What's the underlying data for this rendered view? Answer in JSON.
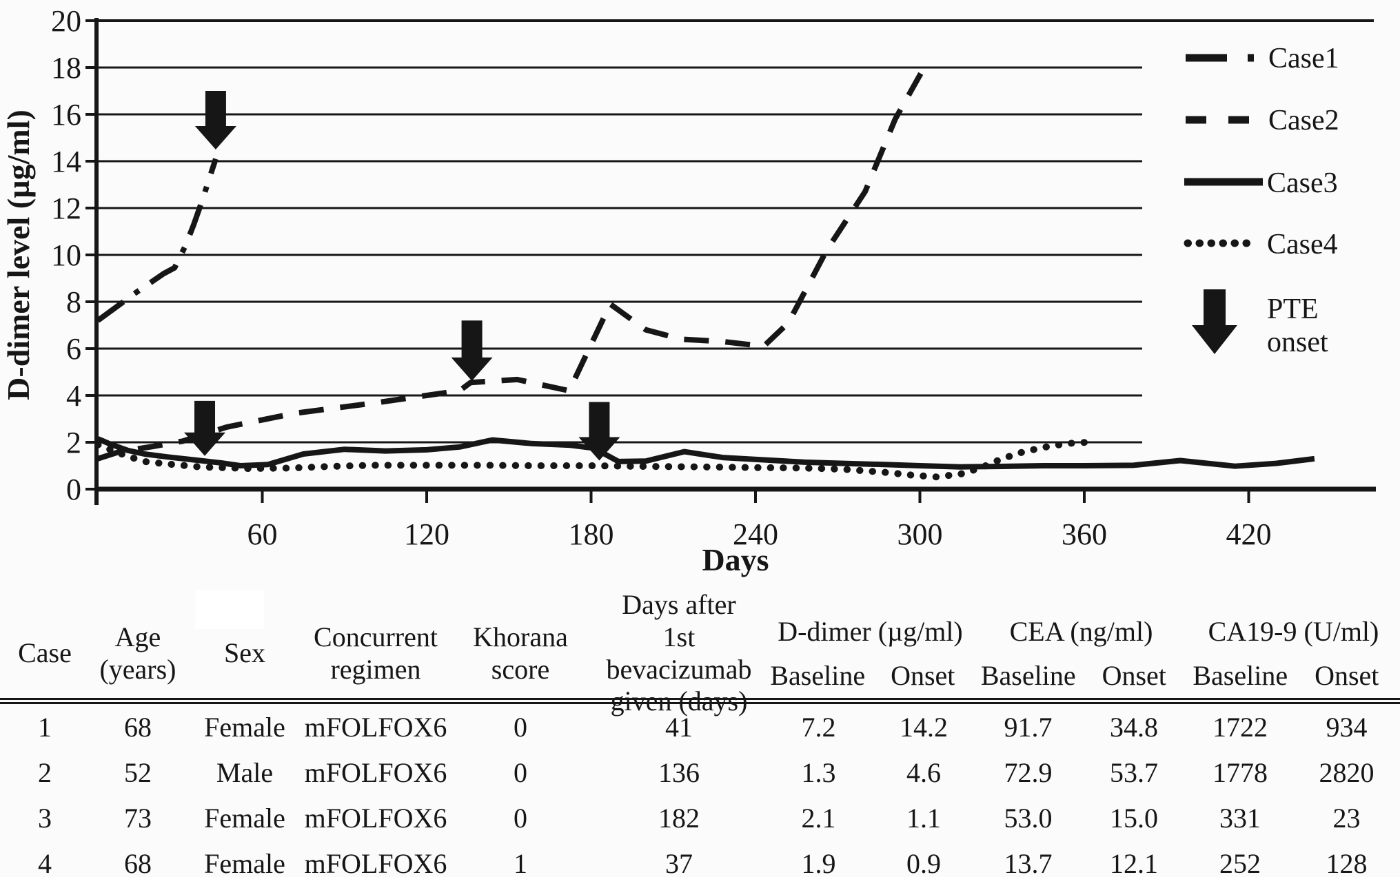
{
  "colors": {
    "ink": "#161616",
    "background": "#fbfbfb",
    "artifact": "#ffffff"
  },
  "chart_data": {
    "type": "line",
    "title": "",
    "xlabel": "Days",
    "ylabel": "D-dimer level (µg/ml)",
    "xlim": [
      0,
      466
    ],
    "ylim": [
      0,
      20
    ],
    "x_ticks": [
      60,
      120,
      180,
      240,
      300,
      360,
      420
    ],
    "y_ticks": [
      0,
      2,
      4,
      6,
      8,
      10,
      12,
      14,
      16,
      18,
      20
    ],
    "grid": "horizontal",
    "legend_position": "right",
    "series": [
      {
        "name": "Case1",
        "line_style": "dash-dot",
        "dash": "46 20 8 20",
        "width": 8,
        "linecap": "butt",
        "points": [
          [
            0,
            7.2
          ],
          [
            14,
            8.4
          ],
          [
            19,
            8.8
          ],
          [
            24,
            9.2
          ],
          [
            28,
            9.45
          ],
          [
            32,
            10.4
          ],
          [
            35,
            11.3
          ],
          [
            38,
            12.3
          ],
          [
            43,
            14.1
          ]
        ]
      },
      {
        "name": "Case2",
        "line_style": "dashed",
        "dash": "36 24",
        "width": 8,
        "linecap": "butt",
        "points": [
          [
            0,
            1.3
          ],
          [
            8,
            1.6
          ],
          [
            20,
            1.82
          ],
          [
            31,
            2.05
          ],
          [
            47,
            2.65
          ],
          [
            72,
            3.24
          ],
          [
            101,
            3.68
          ],
          [
            120,
            4.0
          ],
          [
            132,
            4.2
          ],
          [
            136,
            4.55
          ],
          [
            153,
            4.68
          ],
          [
            172,
            4.2
          ],
          [
            187,
            7.9
          ],
          [
            200,
            6.8
          ],
          [
            213,
            6.4
          ],
          [
            228,
            6.3
          ],
          [
            243,
            6.1
          ],
          [
            252,
            7.1
          ],
          [
            266,
            10.2
          ],
          [
            280,
            12.7
          ],
          [
            291,
            15.8
          ],
          [
            303,
            18.3
          ]
        ]
      },
      {
        "name": "Case3",
        "line_style": "solid",
        "dash": null,
        "width": 8,
        "linecap": "butt",
        "points": [
          [
            0,
            2.15
          ],
          [
            5,
            1.9
          ],
          [
            11,
            1.65
          ],
          [
            17,
            1.5
          ],
          [
            25,
            1.38
          ],
          [
            35,
            1.25
          ],
          [
            45,
            1.12
          ],
          [
            52,
            1.0
          ],
          [
            62,
            1.05
          ],
          [
            75,
            1.5
          ],
          [
            90,
            1.7
          ],
          [
            105,
            1.63
          ],
          [
            120,
            1.68
          ],
          [
            132,
            1.8
          ],
          [
            144,
            2.1
          ],
          [
            158,
            1.95
          ],
          [
            172,
            1.88
          ],
          [
            181,
            1.75
          ],
          [
            190,
            1.18
          ],
          [
            200,
            1.2
          ],
          [
            214,
            1.6
          ],
          [
            228,
            1.35
          ],
          [
            243,
            1.25
          ],
          [
            258,
            1.15
          ],
          [
            272,
            1.1
          ],
          [
            287,
            1.05
          ],
          [
            300,
            1.0
          ],
          [
            315,
            0.95
          ],
          [
            330,
            0.97
          ],
          [
            345,
            1.0
          ],
          [
            360,
            1.0
          ],
          [
            378,
            1.02
          ],
          [
            395,
            1.22
          ],
          [
            415,
            0.98
          ],
          [
            430,
            1.1
          ],
          [
            444,
            1.3
          ]
        ]
      },
      {
        "name": "Case4",
        "line_style": "dotted",
        "dash": "0.5 18",
        "width": 10,
        "linecap": "round",
        "points": [
          [
            0,
            1.9
          ],
          [
            6,
            1.62
          ],
          [
            11,
            1.4
          ],
          [
            17,
            1.18
          ],
          [
            24,
            1.09
          ],
          [
            37,
            0.95
          ],
          [
            55,
            0.88
          ],
          [
            70,
            0.9
          ],
          [
            85,
            0.97
          ],
          [
            100,
            1.02
          ],
          [
            120,
            1.02
          ],
          [
            140,
            1.02
          ],
          [
            160,
            1.0
          ],
          [
            180,
            1.0
          ],
          [
            200,
            0.97
          ],
          [
            220,
            0.95
          ],
          [
            240,
            0.92
          ],
          [
            258,
            0.9
          ],
          [
            272,
            0.85
          ],
          [
            287,
            0.72
          ],
          [
            297,
            0.6
          ],
          [
            306,
            0.52
          ],
          [
            315,
            0.65
          ],
          [
            322,
            0.9
          ],
          [
            330,
            1.3
          ],
          [
            338,
            1.6
          ],
          [
            348,
            1.85
          ],
          [
            356,
            1.97
          ],
          [
            361,
            2.0
          ]
        ]
      }
    ],
    "annotations": {
      "label": "PTE onset",
      "arrows": [
        {
          "series": "Case1",
          "day": 43,
          "tip_value": 14.5,
          "top_value": 17.0
        },
        {
          "series": "Case4",
          "day": 39,
          "tip_value": 1.42,
          "top_value": 3.77
        },
        {
          "series": "Case2",
          "day": 136.5,
          "tip_value": 4.62,
          "top_value": 7.2
        },
        {
          "series": "Case3",
          "day": 183,
          "tip_value": 1.22,
          "top_value": 3.72
        }
      ]
    }
  },
  "legend": {
    "items": [
      {
        "label": "Case1",
        "dash": "60 30 9 200"
      },
      {
        "label": "Case2",
        "dash": "30 32"
      },
      {
        "label": "Case3",
        "dash": "none"
      },
      {
        "label": "Case4",
        "dash": "0.5 16.5"
      }
    ],
    "arrow_label": [
      "PTE",
      "onset"
    ]
  },
  "table": {
    "headers": {
      "case": "Case",
      "age": [
        "Age",
        "(years)"
      ],
      "sex": "Sex",
      "regimen": [
        "Concurrent",
        "regimen"
      ],
      "khorana": [
        "Khorana",
        "score"
      ],
      "days_after": [
        "Days after",
        "1st bevacizumab",
        "given (days)"
      ],
      "ddimer": "D-dimer (µg/ml)",
      "cea": "CEA (ng/ml)",
      "ca199": "CA19-9 (U/ml)",
      "baseline": "Baseline",
      "onset": "Onset"
    },
    "rows": [
      [
        "1",
        "68",
        "Female",
        "mFOLFOX6",
        "0",
        "41",
        "7.2",
        "14.2",
        "91.7",
        "34.8",
        "1722",
        "934"
      ],
      [
        "2",
        "52",
        "Male",
        "mFOLFOX6",
        "0",
        "136",
        "1.3",
        "4.6",
        "72.9",
        "53.7",
        "1778",
        "2820"
      ],
      [
        "3",
        "73",
        "Female",
        "mFOLFOX6",
        "0",
        "182",
        "2.1",
        "1.1",
        "53.0",
        "15.0",
        "331",
        "23"
      ],
      [
        "4",
        "68",
        "Female",
        "mFOLFOX6",
        "1",
        "37",
        "1.9",
        "0.9",
        "13.7",
        "12.1",
        "252",
        "128"
      ]
    ]
  }
}
